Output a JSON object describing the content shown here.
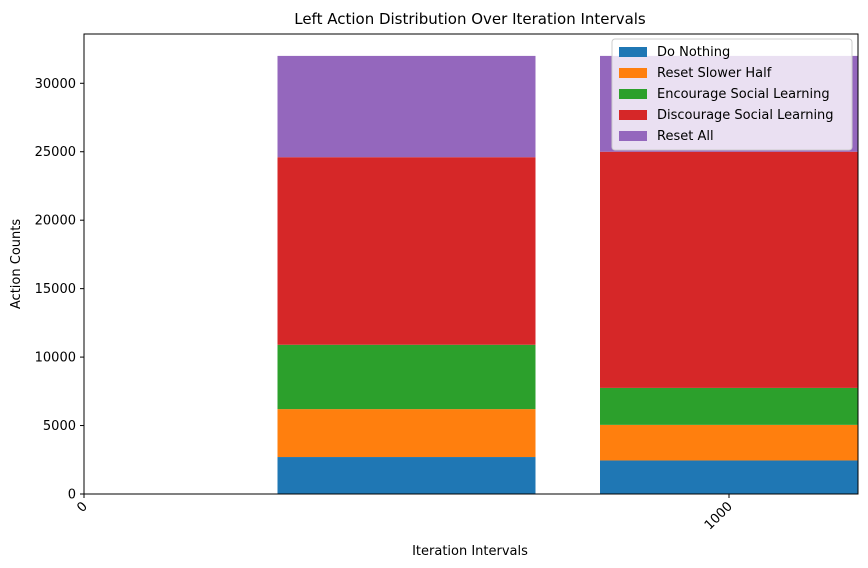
{
  "chart_data": {
    "type": "bar",
    "stacked": true,
    "title": "Left Action Distribution Over Iteration Intervals",
    "xlabel": "Iteration Intervals",
    "ylabel": "Action Counts",
    "x_ticks": [
      0,
      1000
    ],
    "x_tick_labels": [
      "0",
      "1000"
    ],
    "y_ticks": [
      0,
      5000,
      10000,
      15000,
      20000,
      25000,
      30000
    ],
    "y_tick_labels": [
      "0",
      "5000",
      "10000",
      "15000",
      "20000",
      "25000",
      "30000"
    ],
    "ylim": [
      0,
      33600
    ],
    "xlim": [
      0,
      1200
    ],
    "bar_centers": [
      500,
      1000
    ],
    "bar_width": 400,
    "series": [
      {
        "name": "Do Nothing",
        "color": "#1f77b4",
        "values": [
          2700,
          2450
        ]
      },
      {
        "name": "Reset Slower Half",
        "color": "#ff7f0e",
        "values": [
          3500,
          2600
        ]
      },
      {
        "name": "Encourage Social Learning",
        "color": "#2ca02c",
        "values": [
          4700,
          2700
        ]
      },
      {
        "name": "Discourage Social Learning",
        "color": "#d62728",
        "values": [
          13700,
          17250
        ]
      },
      {
        "name": "Reset All",
        "color": "#9467bd",
        "values": [
          7400,
          7000
        ]
      }
    ],
    "legend_position": "top-right",
    "grid": false
  }
}
